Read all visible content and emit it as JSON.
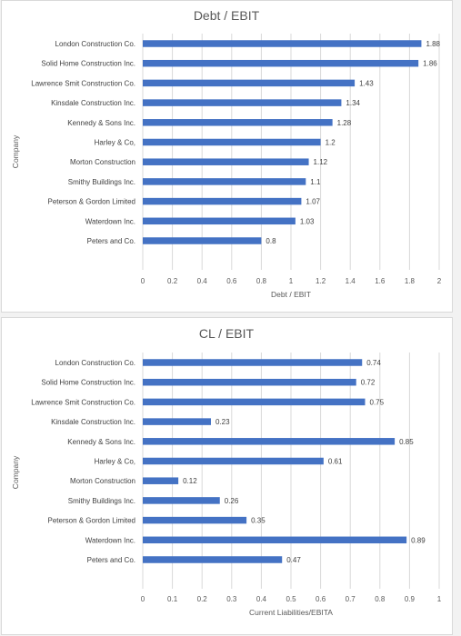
{
  "chart_data": [
    {
      "type": "bar",
      "orientation": "horizontal",
      "title": "Debt / EBIT",
      "xlabel": "Debt / EBIT",
      "ylabel": "Company",
      "xlim": [
        0,
        2
      ],
      "xticks": [
        "0",
        "0.2",
        "0.4",
        "0.6",
        "0.8",
        "1",
        "1.2",
        "1.4",
        "1.6",
        "1.8",
        "2"
      ],
      "grid": "vertical",
      "color": "#4472c4",
      "categories": [
        "London Construction Co.",
        "Solid Home Construction Inc.",
        "Lawrence Smit Construction Co.",
        "Kinsdale Construction Inc.",
        "Kennedy & Sons Inc.",
        "Harley & Co,",
        "Morton Construction",
        "Smithy Buildings Inc.",
        "Peterson & Gordon Limited",
        "Waterdown Inc.",
        "Peters and Co."
      ],
      "values": [
        1.88,
        1.86,
        1.43,
        1.34,
        1.28,
        1.2,
        1.12,
        1.1,
        1.07,
        1.03,
        0.8
      ],
      "value_labels": [
        "1.88",
        "1.86",
        "1.43",
        "1.34",
        "1.28",
        "1.2",
        "1.12",
        "1.1",
        "1.07",
        "1.03",
        "0.8"
      ]
    },
    {
      "type": "bar",
      "orientation": "horizontal",
      "title": "CL / EBIT",
      "xlabel": "Current Liabilities/EBITA",
      "ylabel": "Company",
      "xlim": [
        0,
        1
      ],
      "xticks": [
        "0",
        "0.1",
        "0.2",
        "0.3",
        "0.4",
        "0.5",
        "0.6",
        "0.7",
        "0.8",
        "0.9",
        "1"
      ],
      "grid": "vertical",
      "color": "#4472c4",
      "categories": [
        "London Construction Co.",
        "Solid Home Construction Inc.",
        "Lawrence Smit Construction Co.",
        "Kinsdale Construction Inc.",
        "Kennedy & Sons Inc.",
        "Harley & Co,",
        "Morton Construction",
        "Smithy Buildings Inc.",
        "Peterson & Gordon Limited",
        "Waterdown Inc.",
        "Peters and Co."
      ],
      "values": [
        0.74,
        0.72,
        0.75,
        0.23,
        0.85,
        0.61,
        0.12,
        0.26,
        0.35,
        0.89,
        0.47
      ],
      "value_labels": [
        "0.74",
        "0.72",
        "0.75",
        "0.23",
        "0.85",
        "0.61",
        "0.12",
        "0.26",
        "0.35",
        "0.89",
        "0.47"
      ]
    }
  ]
}
